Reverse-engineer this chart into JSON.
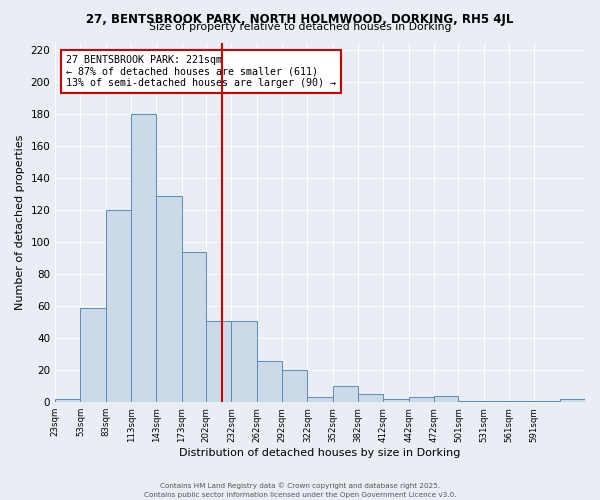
{
  "title1": "27, BENTSBROOK PARK, NORTH HOLMWOOD, DORKING, RH5 4JL",
  "title2": "Size of property relative to detached houses in Dorking",
  "xlabel": "Distribution of detached houses by size in Dorking",
  "ylabel": "Number of detached properties",
  "bin_edges": [
    23,
    53,
    83,
    113,
    143,
    173,
    202,
    232,
    262,
    292,
    322,
    352,
    382,
    412,
    442,
    472,
    501,
    531,
    561,
    591,
    621
  ],
  "bar_heights": [
    2,
    59,
    120,
    180,
    129,
    94,
    51,
    51,
    26,
    20,
    3,
    10,
    5,
    2,
    3,
    4,
    1,
    1,
    1,
    1,
    2
  ],
  "bar_color": "#ccd9e8",
  "bar_edge_color": "#5b8db8",
  "property_size": 221,
  "red_line_color": "#cc0000",
  "annotation_text": "27 BENTSBROOK PARK: 221sqm\n← 87% of detached houses are smaller (611)\n13% of semi-detached houses are larger (90) →",
  "annotation_box_color": "#ffffff",
  "annotation_box_edge_color": "#cc0000",
  "ylim": [
    0,
    225
  ],
  "yticks": [
    0,
    20,
    40,
    60,
    80,
    100,
    120,
    140,
    160,
    180,
    200,
    220
  ],
  "background_color": "#e8eef4",
  "grid_color": "#ffffff",
  "footer_text1": "Contains HM Land Registry data © Crown copyright and database right 2025.",
  "footer_text2": "Contains public sector information licensed under the Open Government Licence v3.0."
}
